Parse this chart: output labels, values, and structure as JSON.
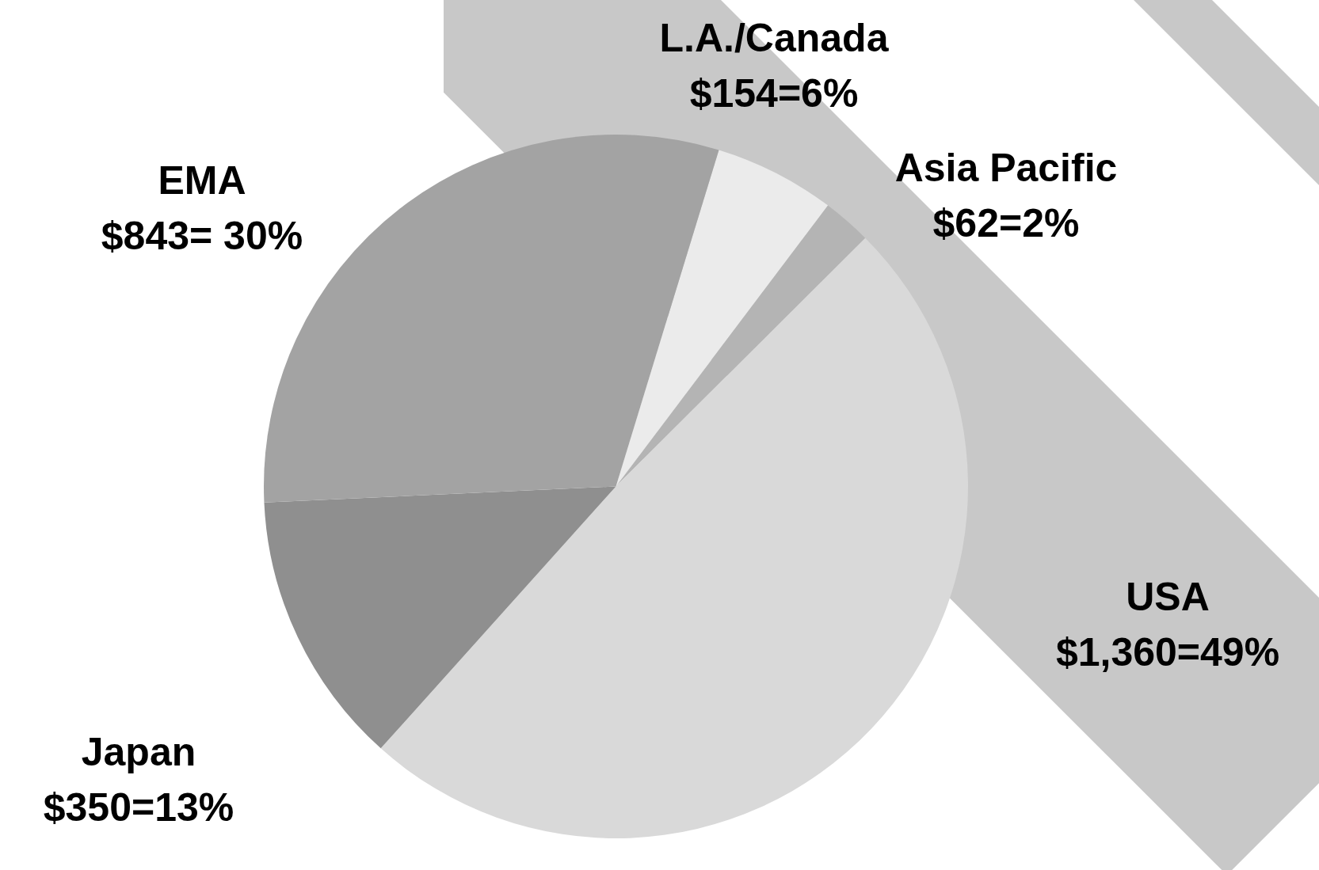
{
  "chart_data": {
    "type": "pie",
    "categories": [
      "L.A./Canada",
      "Asia Pacific",
      "USA",
      "Japan",
      "EMA"
    ],
    "values": [
      154,
      62,
      1360,
      350,
      843
    ],
    "value_labels": [
      "$154=6%",
      "$62=2%",
      "$1,360=49%",
      "$350=13%",
      "$843= 30%"
    ],
    "colors": [
      "#ebebeb",
      "#b4b4b4",
      "#d9d9d9",
      "#8f8f8f",
      "#a3a3a3"
    ]
  }
}
